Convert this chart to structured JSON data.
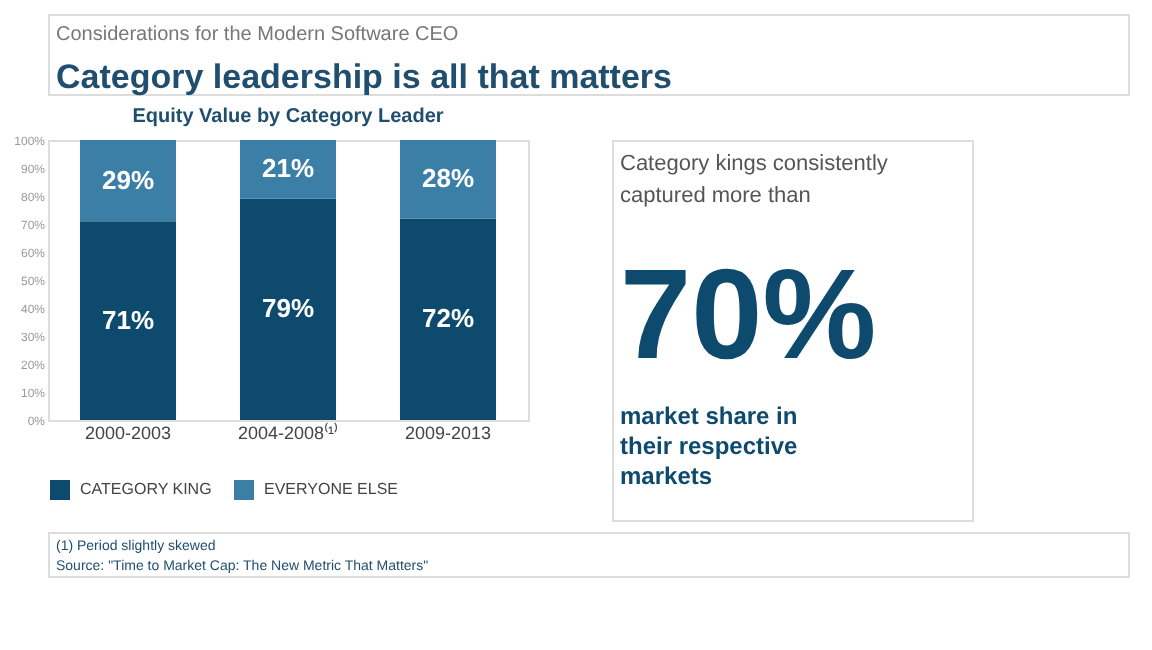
{
  "chart_data": {
    "type": "bar",
    "title": "Equity Value by Category Leader",
    "categories": [
      "2000-2003",
      "2004-2008⁽¹⁾",
      "2009-2013"
    ],
    "stacked": true,
    "series": [
      {
        "name": "CATEGORY KING",
        "color": "#0d4a6e",
        "values": [
          71,
          79,
          72
        ],
        "value_labels": [
          "71%",
          "79%",
          "72%"
        ]
      },
      {
        "name": "EVERYONE ELSE",
        "color": "#3b7fa6",
        "values": [
          29,
          21,
          28
        ],
        "value_labels": [
          "29%",
          "21%",
          "28%"
        ]
      }
    ],
    "ylim": [
      0,
      100
    ],
    "yticks": [
      {
        "value": 0,
        "label": "0%"
      },
      {
        "value": 10,
        "label": "10%"
      },
      {
        "value": 20,
        "label": "20%"
      },
      {
        "value": 30,
        "label": "30%"
      },
      {
        "value": 40,
        "label": "40%"
      },
      {
        "value": 50,
        "label": "50%"
      },
      {
        "value": 60,
        "label": "60%"
      },
      {
        "value": 70,
        "label": "70%"
      },
      {
        "value": 80,
        "label": "80%"
      },
      {
        "value": 90,
        "label": "90%"
      },
      {
        "value": 100,
        "label": "100%"
      }
    ],
    "legend": "bottom",
    "annotations": [
      "Considerations for the Modern Software CEO",
      "Category leadership is all that matters",
      "Category kings consistently captured more than",
      "70%",
      "market share in their respective markets",
      "(1) Period slightly skewed",
      "Source: \"Time to Market Cap: The New Metric That Matters\""
    ]
  }
}
